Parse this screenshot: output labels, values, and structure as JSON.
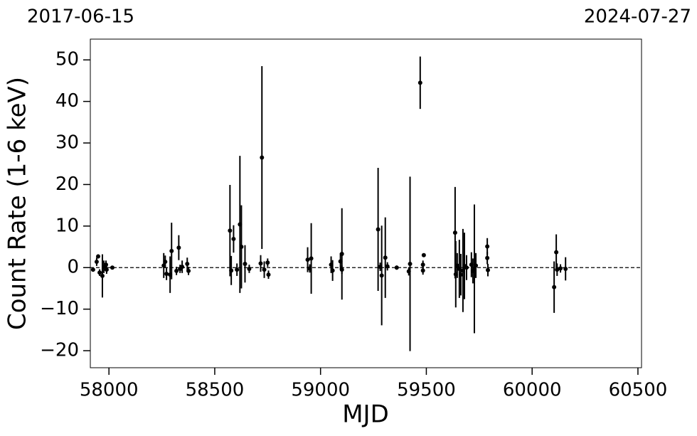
{
  "chart_data": {
    "type": "errorbar",
    "top_labels": [
      "2017-06-15",
      "2024-07-27"
    ],
    "x_label": "MJD",
    "y_label": "Count Rate (1-6 keV)",
    "xlim": [
      57912,
      60517
    ],
    "ylim": [
      -24.1,
      55
    ],
    "xticks": [
      58000,
      58500,
      59000,
      59500,
      60000,
      60500
    ],
    "yticks": [
      {
        "value": -20,
        "label": "−20"
      },
      {
        "value": -10,
        "label": "−10"
      },
      0,
      10,
      20,
      30,
      40,
      50
    ],
    "hline": 0,
    "color": "#000000",
    "x": [
      57925,
      57942,
      57949,
      57956,
      57969,
      57976,
      57986,
      57989,
      58016,
      58259,
      58266,
      58272,
      58289,
      58296,
      58319,
      58330,
      58336,
      58346,
      58370,
      58376,
      58572,
      58578,
      58589,
      58605,
      58619,
      58626,
      58643,
      58663,
      58717,
      58723,
      58734,
      58750,
      58754,
      58939,
      58949,
      58956,
      59050,
      59057,
      59094,
      59101,
      59101,
      59272,
      59282,
      59289,
      59306,
      59316,
      59360,
      59417,
      59423,
      59471,
      59484,
      59484,
      59488,
      59636,
      59639,
      59646,
      59656,
      59663,
      59673,
      59680,
      59690,
      59713,
      59720,
      59727,
      59734,
      59788,
      59788,
      59791,
      60104,
      60114,
      60118,
      60134,
      60158
    ],
    "values": [
      -0.5,
      1.4,
      2.7,
      -1.2,
      -2,
      0.2,
      0.7,
      -0.5,
      0,
      0.5,
      1.4,
      -1.5,
      -1.7,
      4,
      -0.8,
      4.8,
      -0.3,
      0.2,
      0.9,
      -0.8,
      8.9,
      -0.7,
      6.9,
      -0.5,
      10.4,
      5,
      0.9,
      -0.3,
      1,
      26.5,
      -0.5,
      1.2,
      -1.7,
      1.9,
      -0.2,
      2.2,
      0.7,
      -0.7,
      1.5,
      3.3,
      -0.5,
      9.2,
      0.2,
      -1.9,
      2.4,
      0.3,
      0,
      -0.9,
      0.9,
      44.5,
      0.7,
      -0.7,
      3,
      8.4,
      -1.6,
      0.5,
      -0.3,
      -1.7,
      -0.7,
      0.4,
      0,
      0.7,
      -0.8,
      -0.3,
      0.5,
      5.1,
      2.3,
      -0.6,
      -4.7,
      3.7,
      -0.5,
      -0.2,
      -0.3
    ],
    "errors": [
      0.5,
      1,
      0.5,
      0.8,
      5.2,
      1.5,
      1,
      1,
      0.3,
      3,
      1.5,
      1.5,
      4.4,
      6.8,
      1,
      3,
      1,
      1.5,
      1.5,
      1,
      11,
      3.5,
      3.3,
      1.5,
      16.5,
      10,
      4.5,
      1,
      2,
      22,
      2,
      1,
      1,
      3,
      1,
      8.5,
      2,
      2.5,
      2,
      11,
      1,
      14.8,
      1,
      12,
      9.7,
      1,
      0.5,
      1,
      21,
      6.3,
      1,
      1,
      0.4,
      11,
      8,
      3,
      7,
      5,
      10,
      8,
      3,
      3,
      3,
      15.5,
      3,
      2,
      1.5,
      1.5,
      6.2,
      4.3,
      1.5,
      1,
      2.8
    ]
  }
}
